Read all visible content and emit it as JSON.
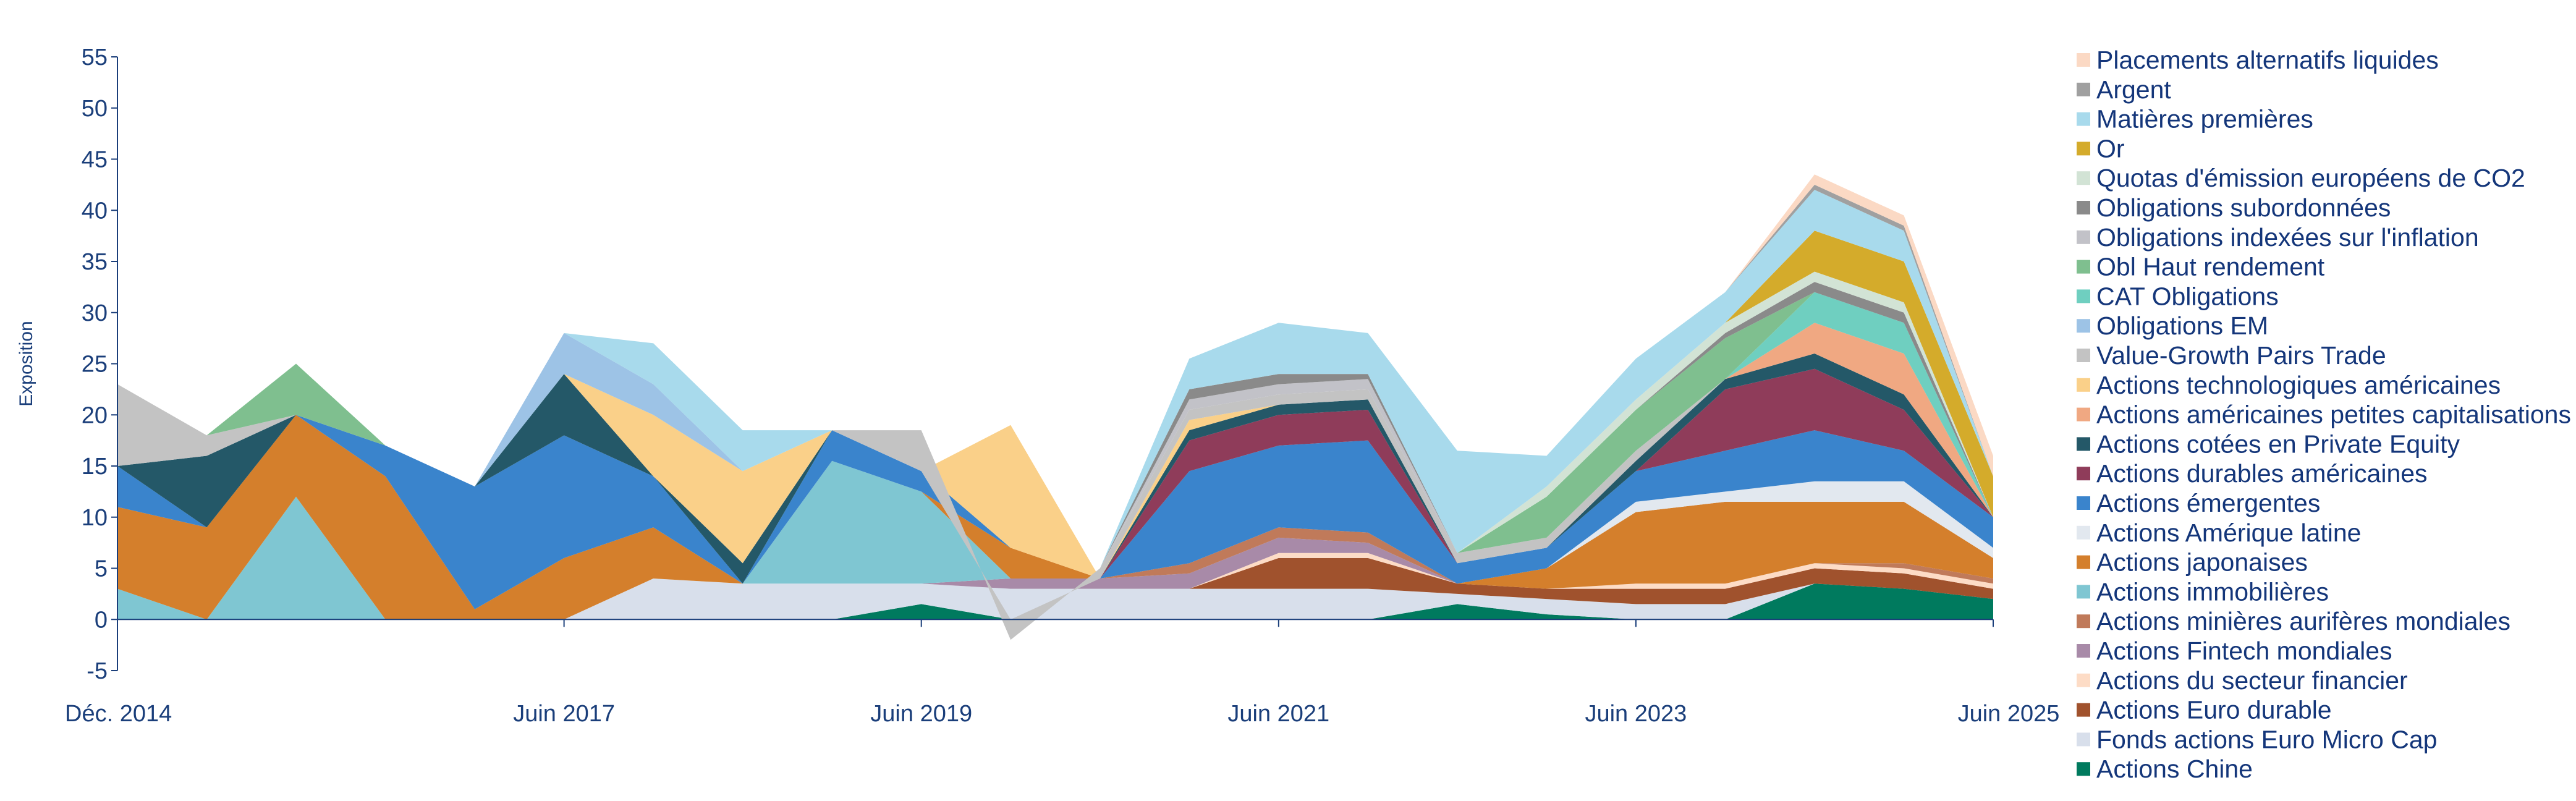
{
  "chart_data": {
    "type": "area",
    "stacked": true,
    "title": "",
    "xlabel": "",
    "ylabel": "Exposition",
    "ylim": [
      -5,
      55
    ],
    "yticks": [
      -5,
      0,
      5,
      10,
      15,
      20,
      25,
      30,
      35,
      40,
      45,
      50,
      55
    ],
    "xrange": [
      "2014-12",
      "2025-06"
    ],
    "xticks": [
      {
        "date": "2014-12",
        "label": "Déc. 2014"
      },
      {
        "date": "2017-06",
        "label": "Juin 2017"
      },
      {
        "date": "2019-06",
        "label": "Juin 2019"
      },
      {
        "date": "2021-06",
        "label": "Juin 2021"
      },
      {
        "date": "2023-06",
        "label": "Juin 2023"
      },
      {
        "date": "2025-06",
        "label": "Juin 2025"
      }
    ],
    "grid": false,
    "legend_position": "right",
    "x": [
      "2014-12",
      "2015-06",
      "2015-12",
      "2016-06",
      "2016-12",
      "2017-06",
      "2017-12",
      "2018-06",
      "2018-12",
      "2019-06",
      "2019-12",
      "2020-06",
      "2020-12",
      "2021-06",
      "2021-12",
      "2022-06",
      "2022-12",
      "2023-06",
      "2023-12",
      "2024-06",
      "2024-12",
      "2025-06"
    ],
    "series": [
      {
        "name": "Actions Chine",
        "color": "#007a5e",
        "values": [
          0,
          0,
          0,
          0,
          0,
          0,
          0,
          0,
          0,
          1.5,
          0,
          0,
          0,
          0,
          0,
          1.5,
          0.5,
          0,
          0,
          3.5,
          3,
          2
        ]
      },
      {
        "name": "Fonds actions Euro Micro Cap",
        "color": "#d8dfeb",
        "values": [
          0,
          0,
          0,
          0,
          0,
          0,
          4,
          3.5,
          3.5,
          2,
          3,
          3,
          3,
          3,
          3,
          1,
          1.5,
          1.5,
          1.5,
          0,
          0,
          0
        ]
      },
      {
        "name": "Actions Euro durable",
        "color": "#a0522d",
        "values": [
          0,
          0,
          0,
          0,
          0,
          0,
          0,
          0,
          0,
          0,
          0,
          0,
          0,
          3,
          3,
          1,
          1,
          1.5,
          1.5,
          1.5,
          1.5,
          1
        ]
      },
      {
        "name": "Actions du secteur financier",
        "color": "#fddcc6",
        "values": [
          0,
          0,
          0,
          0,
          0,
          0,
          0,
          0,
          0,
          0,
          0,
          0,
          0,
          0.5,
          0.5,
          0,
          0,
          0.5,
          0.5,
          0.5,
          0.5,
          0.5
        ]
      },
      {
        "name": "Actions Fintech mondiales",
        "color": "#a88aa8",
        "values": [
          0,
          0,
          0,
          0,
          0,
          0,
          0,
          0,
          0,
          0,
          1,
          1,
          1.5,
          1.5,
          1,
          0,
          0,
          0,
          0,
          0,
          0,
          0
        ]
      },
      {
        "name": "Actions minières aurifères mondiales",
        "color": "#c07a5a",
        "values": [
          0,
          0,
          0,
          0,
          0,
          0,
          0,
          0,
          0,
          0,
          0,
          0,
          1,
          1,
          1,
          0,
          0,
          0,
          0,
          0,
          0.5,
          0.5
        ]
      },
      {
        "name": "Actions immobilières",
        "color": "#7fc6d2",
        "values": [
          3,
          0,
          12,
          0,
          0,
          0,
          0,
          0,
          12,
          9,
          0,
          0,
          0,
          0,
          0,
          0,
          0,
          0,
          0,
          0,
          0,
          0
        ]
      },
      {
        "name": "Actions japonaises",
        "color": "#d47f2c",
        "values": [
          8,
          9,
          8,
          14,
          1,
          6,
          5,
          0,
          0,
          0,
          3,
          0,
          0,
          0,
          0,
          0,
          2,
          7,
          8,
          6,
          6,
          2
        ]
      },
      {
        "name": "Actions Amérique latine",
        "color": "#e2e8ef",
        "values": [
          0,
          0,
          0,
          0,
          0,
          0,
          0,
          0,
          0,
          0,
          0,
          0,
          0,
          0,
          0,
          0,
          0,
          1,
          1,
          2,
          2,
          1
        ]
      },
      {
        "name": "Actions émergentes",
        "color": "#3a84cc",
        "values": [
          4,
          0,
          0,
          3,
          12,
          12,
          5,
          0,
          3,
          2,
          0,
          0,
          9,
          8,
          9,
          2,
          2,
          3,
          4,
          5,
          3,
          3
        ]
      },
      {
        "name": "Actions durables américaines",
        "color": "#8f3c5a",
        "values": [
          0,
          0,
          0,
          0,
          0,
          0,
          0,
          0,
          0,
          0,
          0,
          0,
          3,
          3,
          3,
          0,
          0,
          0,
          6,
          6,
          4,
          0
        ]
      },
      {
        "name": "Actions cotées en Private Equity",
        "color": "#245868",
        "values": [
          0,
          7,
          0,
          0,
          0,
          6,
          0,
          2,
          0,
          0,
          0,
          0,
          1,
          1,
          1,
          0,
          0,
          1,
          1,
          1.5,
          1.5,
          0
        ]
      },
      {
        "name": "Actions américaines petites capitalisations",
        "color": "#f0a882",
        "values": [
          0,
          0,
          0,
          0,
          0,
          0,
          0,
          0,
          0,
          0,
          0,
          0,
          0,
          0,
          0,
          0,
          0,
          0,
          0,
          3,
          4,
          0
        ]
      },
      {
        "name": "Actions technologiques américaines",
        "color": "#fad089",
        "values": [
          0,
          0,
          0,
          0,
          0,
          0,
          6,
          9,
          0,
          0,
          12,
          0,
          1,
          0,
          0,
          0,
          0,
          0,
          0,
          0,
          0,
          0
        ]
      },
      {
        "name": "Value-Growth Pairs Trade",
        "color": "#c3c3c3",
        "values": [
          8,
          2,
          0,
          0,
          0,
          0,
          0,
          0,
          0,
          4,
          -2,
          1,
          1,
          1,
          1,
          1,
          1,
          1,
          0,
          0,
          0,
          0
        ]
      },
      {
        "name": "Obligations EM",
        "color": "#9dc3e6",
        "values": [
          0,
          0,
          0,
          0,
          0,
          4,
          3,
          0,
          0,
          0,
          0,
          0,
          0,
          0,
          0,
          0,
          0,
          0,
          0,
          0,
          0,
          0
        ]
      },
      {
        "name": "CAT Obligations",
        "color": "#6fcfc0",
        "values": [
          0,
          0,
          0,
          0,
          0,
          0,
          0,
          0,
          0,
          0,
          0,
          0,
          0,
          0,
          0,
          0,
          0,
          0,
          0,
          3,
          3,
          0
        ]
      },
      {
        "name": "Obl Haut rendement",
        "color": "#7fbf8f",
        "values": [
          0,
          0,
          5,
          0,
          0,
          0,
          0,
          0,
          0,
          0,
          0,
          0,
          0,
          0,
          0,
          0,
          4,
          4,
          4,
          0,
          0,
          0
        ]
      },
      {
        "name": "Obligations indexées sur l'inflation",
        "color": "#c2c2c8",
        "values": [
          0,
          0,
          0,
          0,
          0,
          0,
          0,
          0,
          0,
          0,
          0,
          0,
          1,
          1,
          1,
          0,
          0,
          0,
          0,
          0,
          0,
          0
        ]
      },
      {
        "name": "Obligations subordonnées",
        "color": "#8a8a8a",
        "values": [
          0,
          0,
          0,
          0,
          0,
          0,
          0,
          0,
          0,
          0,
          0,
          0,
          1,
          1,
          0.5,
          0,
          0,
          0,
          0.5,
          1,
          1,
          0
        ]
      },
      {
        "name": "Quotas d'émission européens de CO2",
        "color": "#d2e3d5",
        "values": [
          0,
          0,
          0,
          0,
          0,
          0,
          0,
          0,
          0,
          0,
          0,
          0,
          0,
          0,
          0,
          0,
          1,
          1,
          1,
          1,
          1,
          0
        ]
      },
      {
        "name": "Or",
        "color": "#d4ab2b",
        "values": [
          0,
          0,
          0,
          0,
          0,
          0,
          0,
          0,
          0,
          0,
          0,
          0,
          0,
          0,
          0,
          0,
          0,
          0,
          0,
          4,
          4,
          4
        ]
      },
      {
        "name": "Matières premières",
        "color": "#a8daec",
        "values": [
          0,
          0,
          0,
          0,
          0,
          0,
          4,
          4,
          0,
          0,
          0,
          0,
          3,
          5,
          4,
          10,
          3,
          4,
          3,
          4,
          3,
          0
        ]
      },
      {
        "name": "Argent",
        "color": "#a0a0a0",
        "values": [
          0,
          0,
          0,
          0,
          0,
          0,
          0,
          0,
          0,
          0,
          0,
          0,
          0,
          0,
          0,
          0,
          0,
          0,
          0,
          0.5,
          0.5,
          0
        ]
      },
      {
        "name": "Placements alternatifs liquides",
        "color": "#fbd9c4",
        "values": [
          0,
          0,
          0,
          0,
          0,
          0,
          0,
          0,
          0,
          0,
          0,
          0,
          0,
          0,
          0,
          0,
          0,
          0,
          0,
          1,
          1,
          2
        ]
      }
    ]
  }
}
